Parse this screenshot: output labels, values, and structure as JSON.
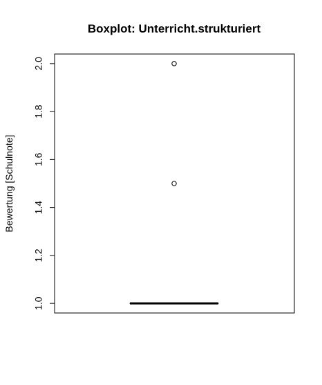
{
  "chart_data": {
    "type": "boxplot",
    "title": "Boxplot: Unterricht.strukturiert",
    "xlabel": "",
    "ylabel": "Bewertung [Schulnote]",
    "ylim": [
      0.96,
      2.04
    ],
    "yticks": [
      "1.0",
      "1.2",
      "1.4",
      "1.6",
      "1.8",
      "2.0"
    ],
    "ytick_values": [
      1.0,
      1.2,
      1.4,
      1.6,
      1.8,
      2.0
    ],
    "box": {
      "min": 1.0,
      "q1": 1.0,
      "median": 1.0,
      "q3": 1.0,
      "max": 1.0
    },
    "outliers": [
      1.5,
      2.0
    ],
    "grid": false,
    "legend": "none"
  }
}
